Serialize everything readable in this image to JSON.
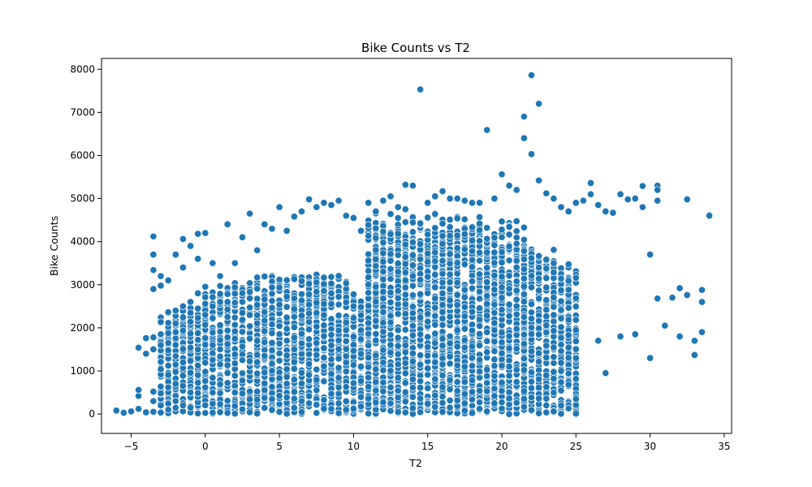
{
  "chart_data": {
    "type": "scatter",
    "title": "Bike Counts vs T2",
    "xlabel": "T2",
    "ylabel": "Bike Counts",
    "xlim": [
      -7.0,
      35.5
    ],
    "ylim": [
      -450,
      8250
    ],
    "xticks": [
      -5,
      0,
      5,
      10,
      15,
      20,
      25,
      30,
      35
    ],
    "yticks": [
      0,
      1000,
      2000,
      3000,
      4000,
      5000,
      6000,
      7000,
      8000
    ],
    "grid": false,
    "legend": "none",
    "marker_color": "#1f77b4",
    "marker_edge_color": "#ffffff",
    "series": [
      {
        "points": [
          [
            -6.0,
            80
          ],
          [
            -5.5,
            30
          ],
          [
            -5.0,
            60
          ],
          [
            -4.5,
            120
          ],
          [
            -4.5,
            420
          ],
          [
            -4.5,
            560
          ],
          [
            -4.5,
            1540
          ],
          [
            -4.0,
            40
          ],
          [
            -4.0,
            1400
          ],
          [
            -4.0,
            1760
          ],
          [
            -3.5,
            50
          ],
          [
            -3.5,
            300
          ],
          [
            -3.5,
            520
          ],
          [
            -3.5,
            1500
          ],
          [
            -3.5,
            1780
          ],
          [
            -3.5,
            2900
          ],
          [
            -3.5,
            3340
          ],
          [
            -3.5,
            3700
          ],
          [
            -3.5,
            4120
          ],
          [
            -3.0,
            200
          ],
          [
            -3.0,
            480
          ],
          [
            -3.0,
            1600
          ],
          [
            -3.0,
            2980
          ],
          [
            -3.0,
            3200
          ],
          [
            -2.5,
            100
          ],
          [
            -2.5,
            1650
          ],
          [
            -2.5,
            3100
          ],
          [
            -2.0,
            300
          ],
          [
            -2.0,
            700
          ],
          [
            -2.0,
            1900
          ],
          [
            -2.0,
            2400
          ],
          [
            -2.0,
            3700
          ],
          [
            -1.5,
            200
          ],
          [
            -1.5,
            1200
          ],
          [
            -1.5,
            2500
          ],
          [
            -1.5,
            3400
          ],
          [
            -1.5,
            4060
          ],
          [
            -1.0,
            500
          ],
          [
            -1.0,
            2600
          ],
          [
            -1.0,
            3900
          ],
          [
            -0.5,
            900
          ],
          [
            -0.5,
            2800
          ],
          [
            -0.5,
            3600
          ],
          [
            -0.5,
            4180
          ],
          [
            0.0,
            2300
          ],
          [
            0.0,
            4200
          ],
          [
            0.5,
            1600
          ],
          [
            0.5,
            2500
          ],
          [
            0.5,
            3500
          ],
          [
            1.0,
            1500
          ],
          [
            1.0,
            2600
          ],
          [
            1.0,
            3200
          ],
          [
            1.5,
            4400
          ],
          [
            2.0,
            3500
          ],
          [
            2.5,
            4100
          ],
          [
            3.0,
            4650
          ],
          [
            3.5,
            3800
          ],
          [
            4.0,
            4400
          ],
          [
            4.5,
            4300
          ],
          [
            5.0,
            4800
          ],
          [
            5.5,
            4250
          ],
          [
            6.0,
            4580
          ],
          [
            6.5,
            4700
          ],
          [
            7.0,
            4980
          ],
          [
            7.5,
            4800
          ],
          [
            8.0,
            4900
          ],
          [
            8.5,
            4850
          ],
          [
            9.0,
            4950
          ],
          [
            9.5,
            4600
          ],
          [
            10.0,
            4550
          ],
          [
            10.5,
            4250
          ],
          [
            11.0,
            4900
          ],
          [
            11.5,
            4700
          ],
          [
            12.0,
            4950
          ],
          [
            12.5,
            5050
          ],
          [
            13.0,
            4800
          ],
          [
            13.5,
            5320
          ],
          [
            14.0,
            5300
          ],
          [
            14.5,
            7530
          ],
          [
            15.0,
            4900
          ],
          [
            15.5,
            5050
          ],
          [
            16.0,
            5170
          ],
          [
            16.5,
            5000
          ],
          [
            17.0,
            5000
          ],
          [
            17.5,
            4950
          ],
          [
            18.0,
            4900
          ],
          [
            18.5,
            4900
          ],
          [
            19.0,
            6590
          ],
          [
            19.5,
            5000
          ],
          [
            20.0,
            5560
          ],
          [
            20.5,
            5300
          ],
          [
            21.0,
            5200
          ],
          [
            21.5,
            6900
          ],
          [
            21.5,
            6400
          ],
          [
            22.0,
            7860
          ],
          [
            22.0,
            6030
          ],
          [
            22.5,
            7200
          ],
          [
            22.5,
            5420
          ],
          [
            23.0,
            5120
          ],
          [
            23.5,
            5000
          ],
          [
            24.0,
            4800
          ],
          [
            24.5,
            4700
          ],
          [
            25.0,
            4900
          ],
          [
            25.5,
            4950
          ],
          [
            26.0,
            5360
          ],
          [
            26.0,
            5100
          ],
          [
            26.5,
            4850
          ],
          [
            27.0,
            4700
          ],
          [
            27.5,
            4670
          ],
          [
            28.0,
            5100
          ],
          [
            28.5,
            4980
          ],
          [
            29.0,
            5000
          ],
          [
            29.5,
            5290
          ],
          [
            29.5,
            4800
          ],
          [
            30.0,
            3700
          ],
          [
            30.0,
            1300
          ],
          [
            30.5,
            5300
          ],
          [
            30.5,
            5200
          ],
          [
            30.5,
            4950
          ],
          [
            30.5,
            2680
          ],
          [
            31.0,
            2050
          ],
          [
            31.5,
            2700
          ],
          [
            32.0,
            2920
          ],
          [
            32.0,
            1800
          ],
          [
            32.5,
            4980
          ],
          [
            32.5,
            2760
          ],
          [
            33.0,
            1370
          ],
          [
            33.0,
            1700
          ],
          [
            33.5,
            2880
          ],
          [
            33.5,
            2600
          ],
          [
            33.5,
            1900
          ],
          [
            34.0,
            4620
          ],
          [
            34.0,
            4600
          ],
          [
            23.5,
            60
          ],
          [
            24.0,
            200
          ],
          [
            24.5,
            130
          ],
          [
            22.5,
            360
          ],
          [
            23.0,
            200
          ],
          [
            21.5,
            350
          ],
          [
            27.0,
            950
          ],
          [
            25.0,
            1300
          ],
          [
            26.5,
            1700
          ],
          [
            28.0,
            1800
          ],
          [
            29.0,
            1850
          ]
        ]
      }
    ]
  }
}
